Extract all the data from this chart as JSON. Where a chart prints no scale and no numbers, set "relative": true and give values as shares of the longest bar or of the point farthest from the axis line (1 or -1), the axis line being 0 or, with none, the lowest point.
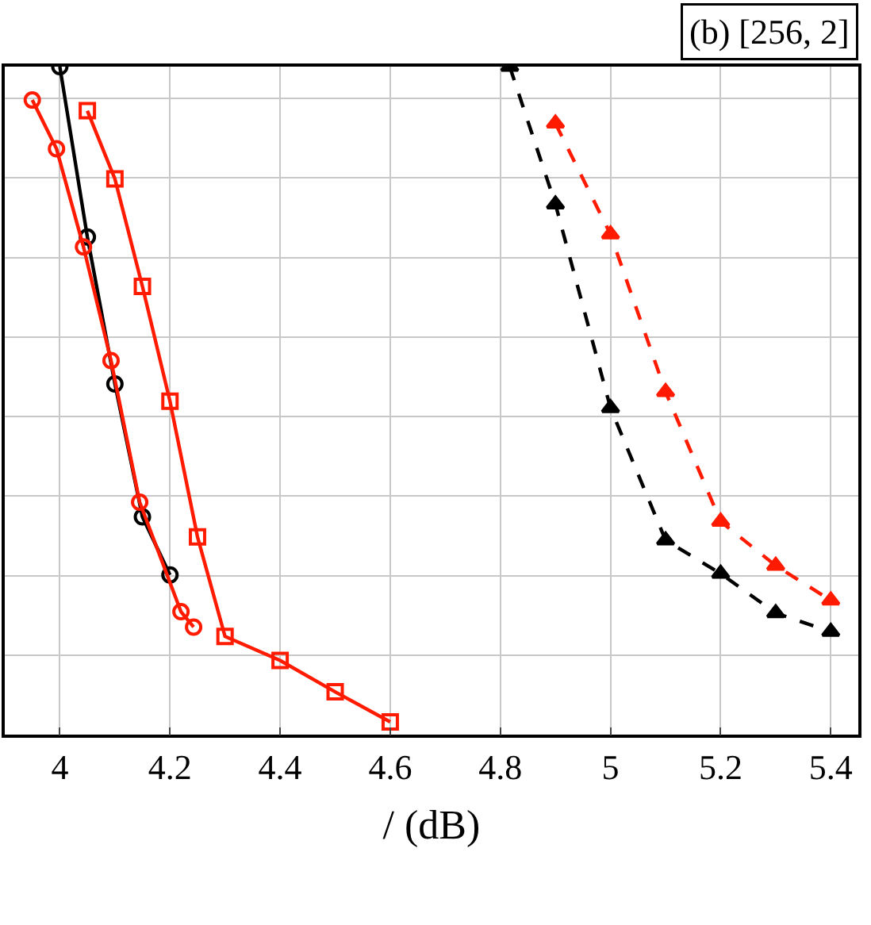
{
  "chart_data": {
    "type": "line",
    "title": "(b) [256, 2]",
    "xlabel": "/ (dB)",
    "relative": true,
    "xlim": [
      3.9,
      5.45
    ],
    "xticks": [
      4,
      4.2,
      4.4,
      4.6,
      4.8,
      5,
      5.2,
      5.4
    ],
    "grid": true,
    "series": [
      {
        "color": "#000000",
        "marker": "circle",
        "line_style": "solid",
        "x": [
          4.0,
          4.05,
          4.1,
          4.15,
          4.2
        ],
        "values": [
          1,
          0.745,
          0.525,
          0.326,
          0.239
        ]
      },
      {
        "color": "#ff1a00",
        "marker": "circle",
        "line_style": "solid",
        "x": [
          3.95,
          3.994,
          4.043,
          4.093,
          4.145,
          4.22,
          4.243
        ],
        "values": [
          0.95,
          0.877,
          0.73,
          0.56,
          0.348,
          0.184,
          0.161
        ]
      },
      {
        "color": "#ff1a00",
        "marker": "square",
        "line_style": "solid",
        "x": [
          4.05,
          4.1,
          4.15,
          4.2,
          4.25,
          4.3,
          4.4,
          4.5,
          4.6
        ],
        "values": [
          0.934,
          0.832,
          0.671,
          0.499,
          0.296,
          0.147,
          0.111,
          0.064,
          0.019
        ]
      },
      {
        "color": "#000000",
        "marker": "triangle",
        "line_style": "dashed",
        "x": [
          4.817,
          4.9,
          5.0,
          5.1,
          5.2,
          5.3,
          5.4
        ],
        "values": [
          1,
          0.794,
          0.489,
          0.291,
          0.241,
          0.182,
          0.154
        ]
      },
      {
        "color": "#ff1a00",
        "marker": "triangle",
        "line_style": "dashed",
        "x": [
          4.9,
          5.0,
          5.1,
          5.2,
          5.3,
          5.4
        ],
        "values": [
          0.915,
          0.749,
          0.513,
          0.319,
          0.253,
          0.201
        ]
      }
    ]
  }
}
